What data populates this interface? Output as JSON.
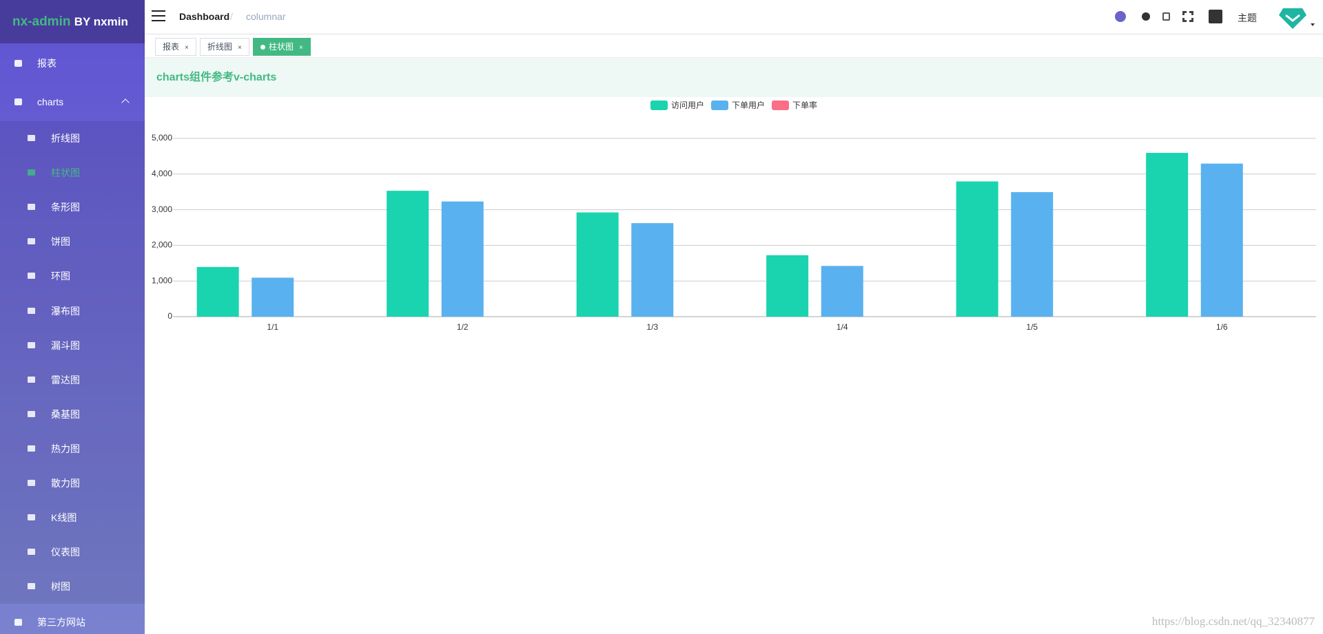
{
  "sidebar": {
    "brand": "nx-admin",
    "brand_suffix": "BY nxmin",
    "items": [
      {
        "label": "报表"
      },
      {
        "label": "charts",
        "children": [
          "折线图",
          "柱状图",
          "条形图",
          "饼图",
          "环图",
          "瀑布图",
          "漏斗图",
          "雷达图",
          "桑基图",
          "热力图",
          "散力图",
          "K线图",
          "仪表图",
          "树图"
        ],
        "active": 1
      },
      {
        "label": "第三方网站"
      }
    ]
  },
  "header": {
    "breadcrumb": [
      "Dashboard",
      "columnar"
    ],
    "theme": "主题"
  },
  "tabs": {
    "items": [
      "报表",
      "折线图",
      "柱状图"
    ],
    "active": 2
  },
  "banner": {
    "title": "charts组件参考v-charts"
  },
  "watermark": "https://blog.csdn.net/qq_32340877",
  "chart_data": {
    "type": "bar",
    "categories": [
      "1/1",
      "1/2",
      "1/3",
      "1/4",
      "1/5",
      "1/6"
    ],
    "series": [
      {
        "name": "访问用户",
        "color": "#19d4ae",
        "values": [
          1393,
          3530,
          2923,
          1723,
          3792,
          4593
        ]
      },
      {
        "name": "下单用户",
        "color": "#5ab1ef",
        "values": [
          1093,
          3230,
          2623,
          1423,
          3492,
          4293
        ]
      },
      {
        "name": "下单率",
        "color": "#fa6e86",
        "values": [
          null,
          null,
          null,
          null,
          null,
          null
        ]
      }
    ],
    "ylim": [
      0,
      5000
    ],
    "yticks": [
      0,
      {
        "value": 1000,
        "label": "1,000"
      },
      {
        "value": 2000,
        "label": "2,000"
      },
      {
        "value": 3000,
        "label": "3,000"
      },
      {
        "value": 4000,
        "label": "4,000"
      },
      {
        "value": 5000,
        "label": "5,000"
      }
    ],
    "grid": true,
    "legend": "top"
  }
}
